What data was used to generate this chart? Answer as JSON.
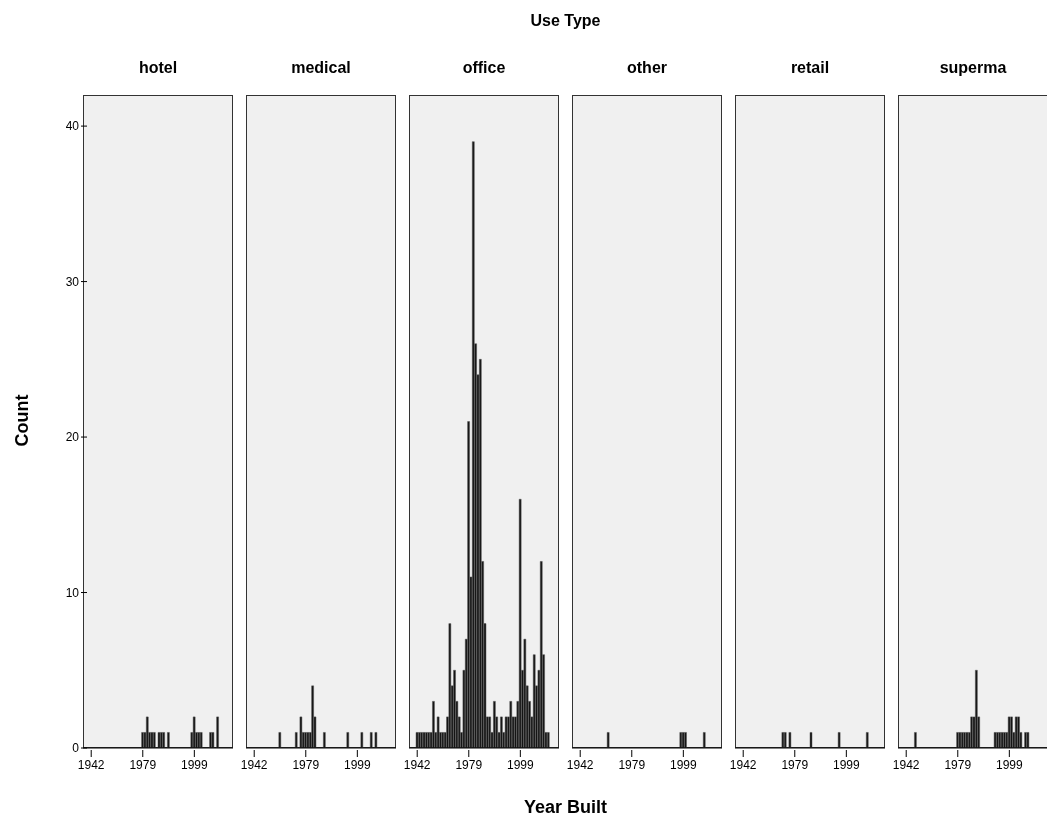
{
  "chart_data": [
    {
      "type": "bar",
      "title": "hotel",
      "ylabel": "Count",
      "color": "#141414",
      "ylim": [
        0,
        42
      ],
      "yticks": [
        0,
        10,
        20,
        30,
        40
      ],
      "categories": [
        null,
        null,
        null,
        "1942",
        null,
        null,
        null,
        null,
        null,
        null,
        null,
        null,
        null,
        null,
        null,
        null,
        null,
        null,
        null,
        null,
        null,
        null,
        null,
        null,
        null,
        "1979",
        null,
        null,
        null,
        null,
        null,
        null,
        null,
        null,
        null,
        null,
        null,
        null,
        null,
        null,
        null,
        null,
        null,
        null,
        null,
        null,
        null,
        "1999",
        null,
        null,
        null,
        null,
        null,
        null,
        null,
        null,
        null,
        null,
        null,
        null,
        null,
        null,
        null,
        null
      ],
      "values": [
        0,
        0,
        0,
        0,
        0,
        0,
        0,
        0,
        0,
        0,
        0,
        0,
        0,
        0,
        0,
        0,
        0,
        0,
        0,
        0,
        0,
        0,
        0,
        0,
        0,
        1,
        1,
        2,
        1,
        1,
        1,
        0,
        1,
        1,
        1,
        0,
        1,
        0,
        0,
        0,
        0,
        0,
        0,
        0,
        0,
        0,
        1,
        2,
        1,
        1,
        1,
        0,
        0,
        0,
        1,
        1,
        0,
        2,
        0,
        0,
        0,
        0,
        0,
        0
      ]
    },
    {
      "type": "bar",
      "title": "medical",
      "tick_labels": "x",
      "color": "#141414",
      "ylim": [
        0,
        42
      ],
      "yticks": [
        0,
        10,
        20,
        30,
        40
      ],
      "categories": [
        null,
        null,
        null,
        "1942",
        null,
        null,
        null,
        null,
        null,
        null,
        null,
        null,
        null,
        null,
        null,
        null,
        null,
        null,
        null,
        null,
        null,
        null,
        null,
        null,
        null,
        "1979",
        null,
        null,
        null,
        null,
        null,
        null,
        null,
        null,
        null,
        null,
        null,
        null,
        null,
        null,
        null,
        null,
        null,
        null,
        null,
        null,
        null,
        "1999",
        null,
        null,
        null,
        null,
        null,
        null,
        null,
        null,
        null,
        null,
        null,
        null,
        null,
        null,
        null,
        null
      ],
      "values": [
        0,
        0,
        0,
        0,
        0,
        0,
        0,
        0,
        0,
        0,
        0,
        0,
        0,
        0,
        1,
        0,
        0,
        0,
        0,
        0,
        0,
        1,
        0,
        2,
        1,
        1,
        1,
        1,
        4,
        2,
        0,
        0,
        0,
        1,
        0,
        0,
        0,
        0,
        0,
        0,
        0,
        0,
        0,
        1,
        0,
        0,
        0,
        0,
        0,
        1,
        0,
        0,
        0,
        1,
        0,
        1,
        0,
        0,
        0,
        0,
        0,
        0,
        0,
        0
      ]
    },
    {
      "type": "bar",
      "title": "office",
      "tick_labels": "x",
      "color": "#141414",
      "ylim": [
        0,
        42
      ],
      "yticks": [
        0,
        10,
        20,
        30,
        40
      ],
      "categories": [
        null,
        null,
        null,
        "1942",
        null,
        null,
        null,
        null,
        null,
        null,
        null,
        null,
        null,
        null,
        null,
        null,
        null,
        null,
        null,
        null,
        null,
        null,
        null,
        null,
        null,
        "1979",
        null,
        null,
        null,
        null,
        null,
        null,
        null,
        null,
        null,
        null,
        null,
        null,
        null,
        null,
        null,
        null,
        null,
        null,
        null,
        null,
        null,
        "1999",
        null,
        null,
        null,
        null,
        null,
        null,
        null,
        null,
        null,
        null,
        null,
        null,
        null,
        null,
        null,
        null
      ],
      "values": [
        0,
        0,
        0,
        1,
        1,
        1,
        1,
        1,
        1,
        1,
        3,
        1,
        2,
        1,
        1,
        1,
        2,
        8,
        4,
        5,
        3,
        2,
        1,
        5,
        7,
        21,
        11,
        39,
        26,
        24,
        25,
        12,
        8,
        2,
        2,
        1,
        3,
        2,
        1,
        2,
        1,
        2,
        2,
        3,
        2,
        2,
        3,
        16,
        5,
        7,
        4,
        3,
        2,
        6,
        4,
        5,
        12,
        6,
        1,
        1,
        0,
        0,
        0,
        0
      ]
    },
    {
      "type": "bar",
      "title": "other",
      "tick_labels": "x",
      "color": "#141414",
      "ylim": [
        0,
        42
      ],
      "yticks": [
        0,
        10,
        20,
        30,
        40
      ],
      "categories": [
        null,
        null,
        null,
        "1942",
        null,
        null,
        null,
        null,
        null,
        null,
        null,
        null,
        null,
        null,
        null,
        null,
        null,
        null,
        null,
        null,
        null,
        null,
        null,
        null,
        null,
        "1979",
        null,
        null,
        null,
        null,
        null,
        null,
        null,
        null,
        null,
        null,
        null,
        null,
        null,
        null,
        null,
        null,
        null,
        null,
        null,
        null,
        null,
        "1999",
        null,
        null,
        null,
        null,
        null,
        null,
        null,
        null,
        null,
        null,
        null,
        null,
        null,
        null,
        null,
        null
      ],
      "values": [
        0,
        0,
        0,
        0,
        0,
        0,
        0,
        0,
        0,
        0,
        0,
        0,
        0,
        0,
        0,
        1,
        0,
        0,
        0,
        0,
        0,
        0,
        0,
        0,
        0,
        0,
        0,
        0,
        0,
        0,
        0,
        0,
        0,
        0,
        0,
        0,
        0,
        0,
        0,
        0,
        0,
        0,
        0,
        0,
        0,
        0,
        1,
        1,
        1,
        0,
        0,
        0,
        0,
        0,
        0,
        0,
        1,
        0,
        0,
        0,
        0,
        0,
        0,
        0
      ]
    },
    {
      "type": "bar",
      "title": "retail",
      "tick_labels": "x",
      "color": "#141414",
      "ylim": [
        0,
        42
      ],
      "yticks": [
        0,
        10,
        20,
        30,
        40
      ],
      "categories": [
        null,
        null,
        null,
        "1942",
        null,
        null,
        null,
        null,
        null,
        null,
        null,
        null,
        null,
        null,
        null,
        null,
        null,
        null,
        null,
        null,
        null,
        null,
        null,
        null,
        null,
        "1979",
        null,
        null,
        null,
        null,
        null,
        null,
        null,
        null,
        null,
        null,
        null,
        null,
        null,
        null,
        null,
        null,
        null,
        null,
        null,
        null,
        null,
        "1999",
        null,
        null,
        null,
        null,
        null,
        null,
        null,
        null,
        null,
        null,
        null,
        null,
        null,
        null,
        null,
        null
      ],
      "values": [
        0,
        0,
        0,
        0,
        0,
        0,
        0,
        0,
        0,
        0,
        0,
        0,
        0,
        0,
        0,
        0,
        0,
        0,
        0,
        0,
        1,
        1,
        0,
        1,
        0,
        0,
        0,
        0,
        0,
        0,
        0,
        0,
        1,
        0,
        0,
        0,
        0,
        0,
        0,
        0,
        0,
        0,
        0,
        0,
        1,
        0,
        0,
        0,
        0,
        0,
        0,
        0,
        0,
        0,
        0,
        0,
        1,
        0,
        0,
        0,
        0,
        0,
        0,
        0
      ]
    },
    {
      "type": "bar",
      "title": "superma",
      "tick_labels": "x",
      "color": "#141414",
      "ylim": [
        0,
        42
      ],
      "yticks": [
        0,
        10,
        20,
        30,
        40
      ],
      "categories": [
        null,
        null,
        null,
        "1942",
        null,
        null,
        null,
        null,
        null,
        null,
        null,
        null,
        null,
        null,
        null,
        null,
        null,
        null,
        null,
        null,
        null,
        null,
        null,
        null,
        null,
        "1979",
        null,
        null,
        null,
        null,
        null,
        null,
        null,
        null,
        null,
        null,
        null,
        null,
        null,
        null,
        null,
        null,
        null,
        null,
        null,
        null,
        null,
        "1999",
        null,
        null,
        null,
        null,
        null,
        null,
        null,
        null,
        null,
        null,
        null,
        null,
        null,
        null,
        null,
        null
      ],
      "values": [
        0,
        0,
        0,
        0,
        0,
        0,
        0,
        1,
        0,
        0,
        0,
        0,
        0,
        0,
        0,
        0,
        0,
        0,
        0,
        0,
        0,
        0,
        0,
        0,
        0,
        1,
        1,
        1,
        1,
        1,
        1,
        2,
        2,
        5,
        2,
        0,
        0,
        0,
        0,
        0,
        0,
        1,
        1,
        1,
        1,
        1,
        1,
        2,
        2,
        1,
        2,
        2,
        1,
        0,
        1,
        1,
        0,
        0,
        0,
        0,
        0,
        0,
        0,
        0
      ]
    },
    {
      "type": "other",
      "title": "Use Type",
      "xlabel": "Year Built"
    }
  ]
}
